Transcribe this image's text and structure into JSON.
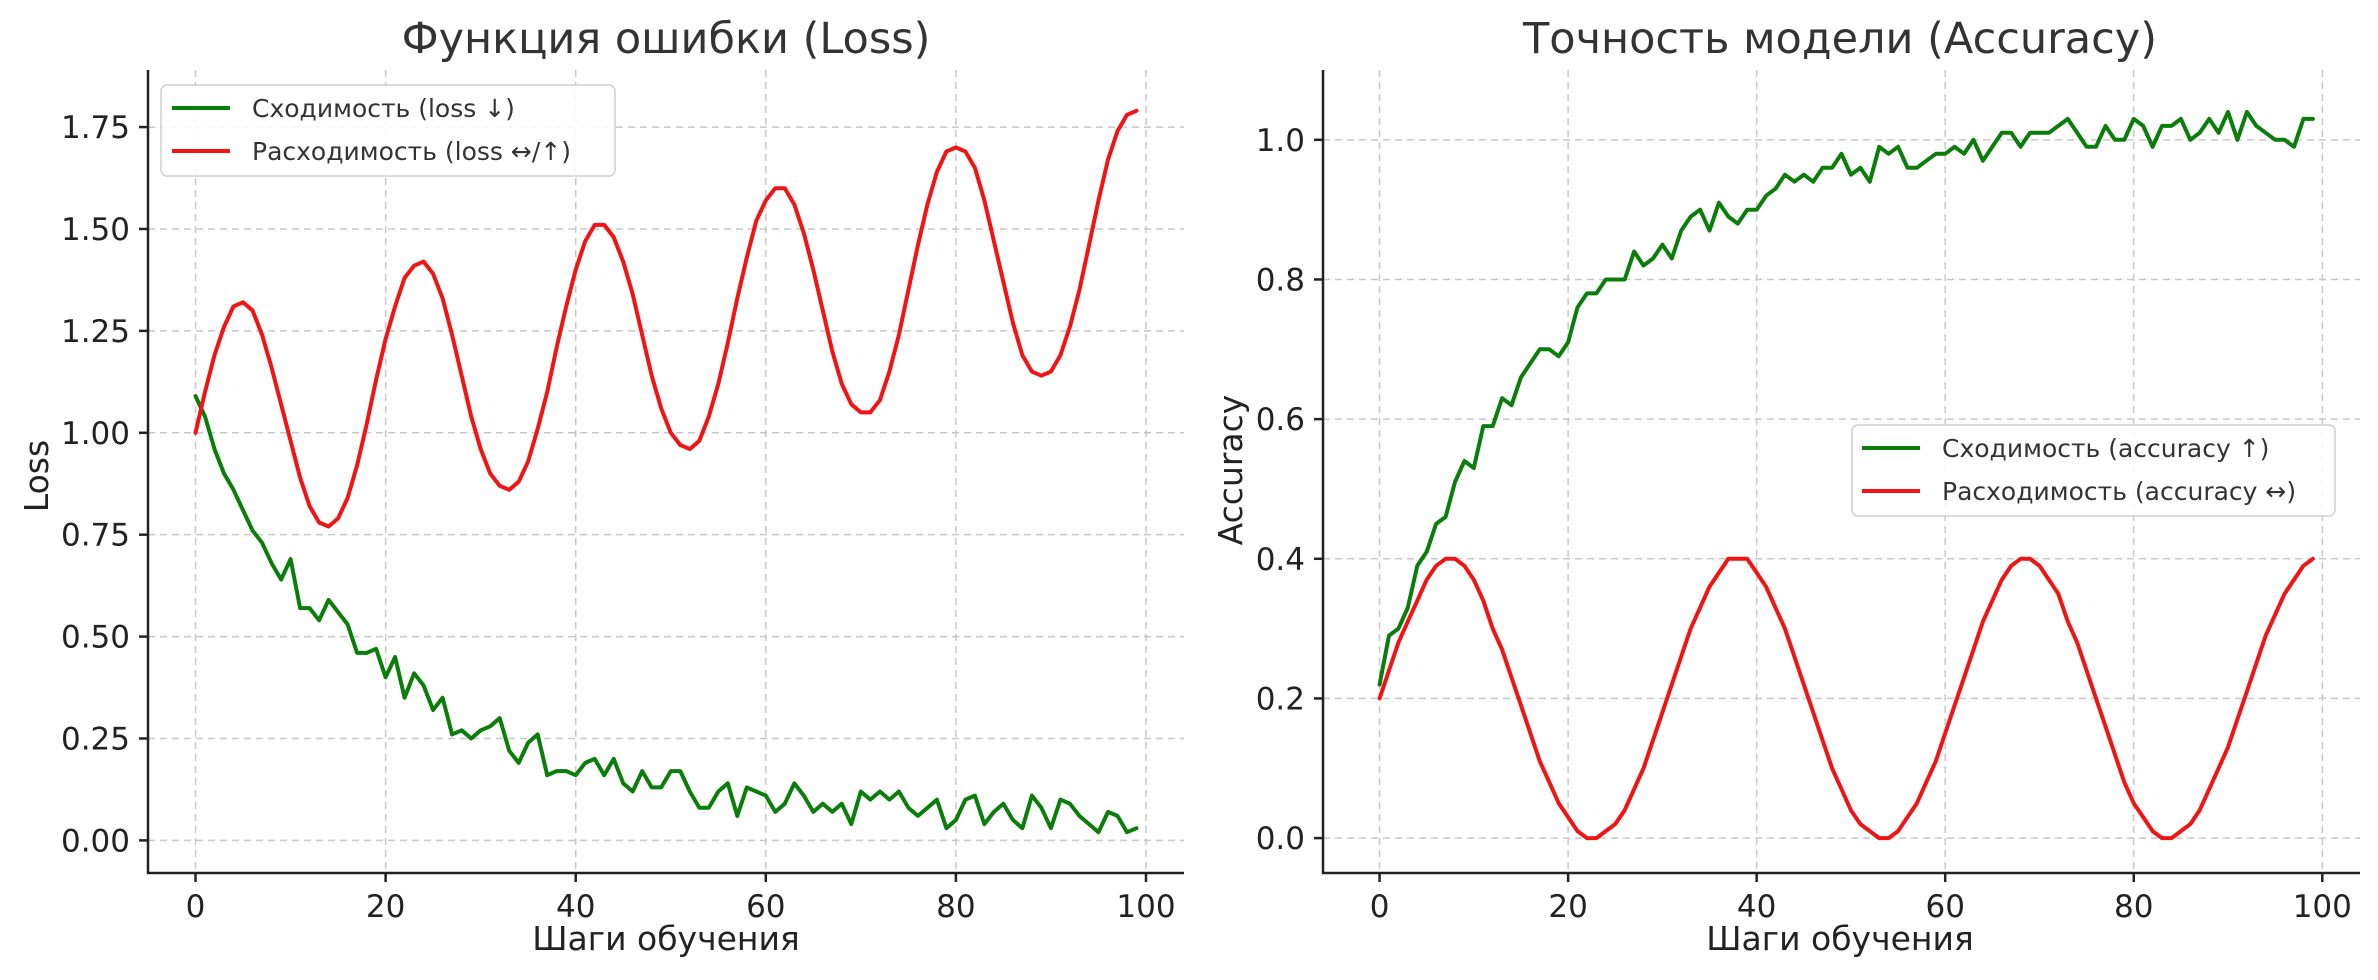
{
  "colors": {
    "convergence": "#0a7d0a",
    "divergence": "#f01414"
  },
  "chart_data": [
    {
      "type": "line",
      "title": "Функция ошибки (Loss)",
      "xlabel": "Шаги обучения",
      "ylabel": "Loss",
      "xlim": [
        -5,
        104
      ],
      "ylim": [
        -0.08,
        1.89
      ],
      "xticks": [
        0,
        20,
        40,
        60,
        80,
        100
      ],
      "xtick_labels": [
        "0",
        "20",
        "40",
        "60",
        "80",
        "100"
      ],
      "yticks": [
        0.0,
        0.25,
        0.5,
        0.75,
        1.0,
        1.25,
        1.5,
        1.75
      ],
      "ytick_labels": [
        "0.00",
        "0.25",
        "0.50",
        "0.75",
        "1.00",
        "1.25",
        "1.50",
        "1.75"
      ],
      "grid": true,
      "legend_position": "upper-left",
      "series": [
        {
          "name": "Сходимость (loss ↓)",
          "color": "#0a7d0a",
          "x": [
            0,
            1,
            2,
            3,
            4,
            5,
            6,
            7,
            8,
            9,
            10,
            11,
            12,
            13,
            14,
            15,
            16,
            17,
            18,
            19,
            20,
            21,
            22,
            23,
            24,
            25,
            26,
            27,
            28,
            29,
            30,
            31,
            32,
            33,
            34,
            35,
            36,
            37,
            38,
            39,
            40,
            41,
            42,
            43,
            44,
            45,
            46,
            47,
            48,
            49,
            50,
            51,
            52,
            53,
            54,
            55,
            56,
            57,
            58,
            59,
            60,
            61,
            62,
            63,
            64,
            65,
            66,
            67,
            68,
            69,
            70,
            71,
            72,
            73,
            74,
            75,
            76,
            77,
            78,
            79,
            80,
            81,
            82,
            83,
            84,
            85,
            86,
            87,
            88,
            89,
            90,
            91,
            92,
            93,
            94,
            95,
            96,
            97,
            98,
            99
          ],
          "y": [
            1.09,
            1.04,
            0.96,
            0.9,
            0.86,
            0.81,
            0.76,
            0.73,
            0.68,
            0.64,
            0.69,
            0.57,
            0.57,
            0.54,
            0.59,
            0.56,
            0.53,
            0.46,
            0.46,
            0.47,
            0.4,
            0.45,
            0.35,
            0.41,
            0.38,
            0.32,
            0.35,
            0.26,
            0.27,
            0.25,
            0.27,
            0.28,
            0.3,
            0.22,
            0.19,
            0.24,
            0.26,
            0.16,
            0.17,
            0.17,
            0.16,
            0.19,
            0.2,
            0.16,
            0.2,
            0.14,
            0.12,
            0.17,
            0.13,
            0.13,
            0.17,
            0.17,
            0.12,
            0.08,
            0.08,
            0.12,
            0.14,
            0.06,
            0.13,
            0.12,
            0.11,
            0.07,
            0.09,
            0.14,
            0.11,
            0.07,
            0.09,
            0.07,
            0.09,
            0.04,
            0.12,
            0.1,
            0.12,
            0.1,
            0.12,
            0.08,
            0.06,
            0.08,
            0.1,
            0.03,
            0.05,
            0.1,
            0.11,
            0.04,
            0.07,
            0.09,
            0.05,
            0.03,
            0.11,
            0.08,
            0.03,
            0.1,
            0.09,
            0.06,
            0.04,
            0.02,
            0.07,
            0.06,
            0.02,
            0.03
          ]
        },
        {
          "name": "Расходимость (loss ↔/↑)",
          "color": "#f01414",
          "x": [
            0,
            1,
            2,
            3,
            4,
            5,
            6,
            7,
            8,
            9,
            10,
            11,
            12,
            13,
            14,
            15,
            16,
            17,
            18,
            19,
            20,
            21,
            22,
            23,
            24,
            25,
            26,
            27,
            28,
            29,
            30,
            31,
            32,
            33,
            34,
            35,
            36,
            37,
            38,
            39,
            40,
            41,
            42,
            43,
            44,
            45,
            46,
            47,
            48,
            49,
            50,
            51,
            52,
            53,
            54,
            55,
            56,
            57,
            58,
            59,
            60,
            61,
            62,
            63,
            64,
            65,
            66,
            67,
            68,
            69,
            70,
            71,
            72,
            73,
            74,
            75,
            76,
            77,
            78,
            79,
            80,
            81,
            82,
            83,
            84,
            85,
            86,
            87,
            88,
            89,
            90,
            91,
            92,
            93,
            94,
            95,
            96,
            97,
            98,
            99
          ],
          "y": [
            1.0,
            1.1,
            1.19,
            1.26,
            1.31,
            1.32,
            1.3,
            1.24,
            1.16,
            1.07,
            0.98,
            0.89,
            0.82,
            0.78,
            0.77,
            0.79,
            0.84,
            0.92,
            1.02,
            1.13,
            1.23,
            1.31,
            1.38,
            1.41,
            1.42,
            1.39,
            1.33,
            1.24,
            1.14,
            1.04,
            0.96,
            0.9,
            0.87,
            0.86,
            0.88,
            0.93,
            1.01,
            1.1,
            1.21,
            1.31,
            1.4,
            1.47,
            1.51,
            1.51,
            1.48,
            1.42,
            1.34,
            1.24,
            1.14,
            1.06,
            1.0,
            0.97,
            0.96,
            0.98,
            1.04,
            1.12,
            1.22,
            1.33,
            1.43,
            1.52,
            1.57,
            1.6,
            1.6,
            1.56,
            1.49,
            1.4,
            1.3,
            1.2,
            1.12,
            1.07,
            1.05,
            1.05,
            1.08,
            1.15,
            1.24,
            1.35,
            1.46,
            1.56,
            1.64,
            1.69,
            1.7,
            1.69,
            1.65,
            1.57,
            1.47,
            1.37,
            1.27,
            1.19,
            1.15,
            1.14,
            1.15,
            1.19,
            1.26,
            1.35,
            1.46,
            1.57,
            1.67,
            1.74,
            1.78,
            1.79
          ]
        }
      ]
    },
    {
      "type": "line",
      "title": "Точность модели (Accuracy)",
      "xlabel": "Шаги обучения",
      "ylabel": "Accuracy",
      "xlim": [
        -6,
        104
      ],
      "ylim": [
        -0.05,
        1.1
      ],
      "xticks": [
        0,
        20,
        40,
        60,
        80,
        100
      ],
      "xtick_labels": [
        "0",
        "20",
        "40",
        "60",
        "80",
        "100"
      ],
      "yticks": [
        0.0,
        0.2,
        0.4,
        0.6,
        0.8,
        1.0
      ],
      "ytick_labels": [
        "0.0",
        "0.2",
        "0.4",
        "0.6",
        "0.8",
        "1.0"
      ],
      "grid": true,
      "legend_position": "center-right",
      "series": [
        {
          "name": "Сходимость (accuracy ↑)",
          "color": "#0a7d0a",
          "x": [
            0,
            1,
            2,
            3,
            4,
            5,
            6,
            7,
            8,
            9,
            10,
            11,
            12,
            13,
            14,
            15,
            16,
            17,
            18,
            19,
            20,
            21,
            22,
            23,
            24,
            25,
            26,
            27,
            28,
            29,
            30,
            31,
            32,
            33,
            34,
            35,
            36,
            37,
            38,
            39,
            40,
            41,
            42,
            43,
            44,
            45,
            46,
            47,
            48,
            49,
            50,
            51,
            52,
            53,
            54,
            55,
            56,
            57,
            58,
            59,
            60,
            61,
            62,
            63,
            64,
            65,
            66,
            67,
            68,
            69,
            70,
            71,
            72,
            73,
            74,
            75,
            76,
            77,
            78,
            79,
            80,
            81,
            82,
            83,
            84,
            85,
            86,
            87,
            88,
            89,
            90,
            91,
            92,
            93,
            94,
            95,
            96,
            97,
            98,
            99
          ],
          "y": [
            0.22,
            0.29,
            0.3,
            0.33,
            0.39,
            0.41,
            0.45,
            0.46,
            0.51,
            0.54,
            0.53,
            0.59,
            0.59,
            0.63,
            0.62,
            0.66,
            0.68,
            0.7,
            0.7,
            0.69,
            0.71,
            0.76,
            0.78,
            0.78,
            0.8,
            0.8,
            0.8,
            0.84,
            0.82,
            0.83,
            0.85,
            0.83,
            0.87,
            0.89,
            0.9,
            0.87,
            0.91,
            0.89,
            0.88,
            0.9,
            0.9,
            0.92,
            0.93,
            0.95,
            0.94,
            0.95,
            0.94,
            0.96,
            0.96,
            0.98,
            0.95,
            0.96,
            0.94,
            0.99,
            0.98,
            0.99,
            0.96,
            0.96,
            0.97,
            0.98,
            0.98,
            0.99,
            0.98,
            1.0,
            0.97,
            0.99,
            1.01,
            1.01,
            0.99,
            1.01,
            1.01,
            1.01,
            1.02,
            1.03,
            1.01,
            0.99,
            0.99,
            1.02,
            1.0,
            1.0,
            1.03,
            1.02,
            0.99,
            1.02,
            1.02,
            1.03,
            1.0,
            1.01,
            1.03,
            1.01,
            1.04,
            1.0,
            1.04,
            1.02,
            1.01,
            1.0,
            1.0,
            0.99,
            1.03,
            1.03
          ]
        },
        {
          "name": "Расходимость (accuracy ↔)",
          "color": "#f01414",
          "x": [
            0,
            1,
            2,
            3,
            4,
            5,
            6,
            7,
            8,
            9,
            10,
            11,
            12,
            13,
            14,
            15,
            16,
            17,
            18,
            19,
            20,
            21,
            22,
            23,
            24,
            25,
            26,
            27,
            28,
            29,
            30,
            31,
            32,
            33,
            34,
            35,
            36,
            37,
            38,
            39,
            40,
            41,
            42,
            43,
            44,
            45,
            46,
            47,
            48,
            49,
            50,
            51,
            52,
            53,
            54,
            55,
            56,
            57,
            58,
            59,
            60,
            61,
            62,
            63,
            64,
            65,
            66,
            67,
            68,
            69,
            70,
            71,
            72,
            73,
            74,
            75,
            76,
            77,
            78,
            79,
            80,
            81,
            82,
            83,
            84,
            85,
            86,
            87,
            88,
            89,
            90,
            91,
            92,
            93,
            94,
            95,
            96,
            97,
            98,
            99
          ],
          "y": [
            0.2,
            0.24,
            0.28,
            0.31,
            0.34,
            0.37,
            0.39,
            0.4,
            0.4,
            0.39,
            0.37,
            0.34,
            0.3,
            0.27,
            0.23,
            0.19,
            0.15,
            0.11,
            0.08,
            0.05,
            0.03,
            0.01,
            0.0,
            0.0,
            0.01,
            0.02,
            0.04,
            0.07,
            0.1,
            0.14,
            0.18,
            0.22,
            0.26,
            0.3,
            0.33,
            0.36,
            0.38,
            0.4,
            0.4,
            0.4,
            0.38,
            0.36,
            0.33,
            0.3,
            0.26,
            0.22,
            0.18,
            0.14,
            0.1,
            0.07,
            0.04,
            0.02,
            0.01,
            0.0,
            0.0,
            0.01,
            0.03,
            0.05,
            0.08,
            0.11,
            0.15,
            0.19,
            0.23,
            0.27,
            0.31,
            0.34,
            0.37,
            0.39,
            0.4,
            0.4,
            0.39,
            0.37,
            0.35,
            0.31,
            0.28,
            0.24,
            0.2,
            0.16,
            0.12,
            0.08,
            0.05,
            0.03,
            0.01,
            0.0,
            0.0,
            0.01,
            0.02,
            0.04,
            0.07,
            0.1,
            0.13,
            0.17,
            0.21,
            0.25,
            0.29,
            0.32,
            0.35,
            0.37,
            0.39,
            0.4
          ]
        }
      ]
    }
  ]
}
